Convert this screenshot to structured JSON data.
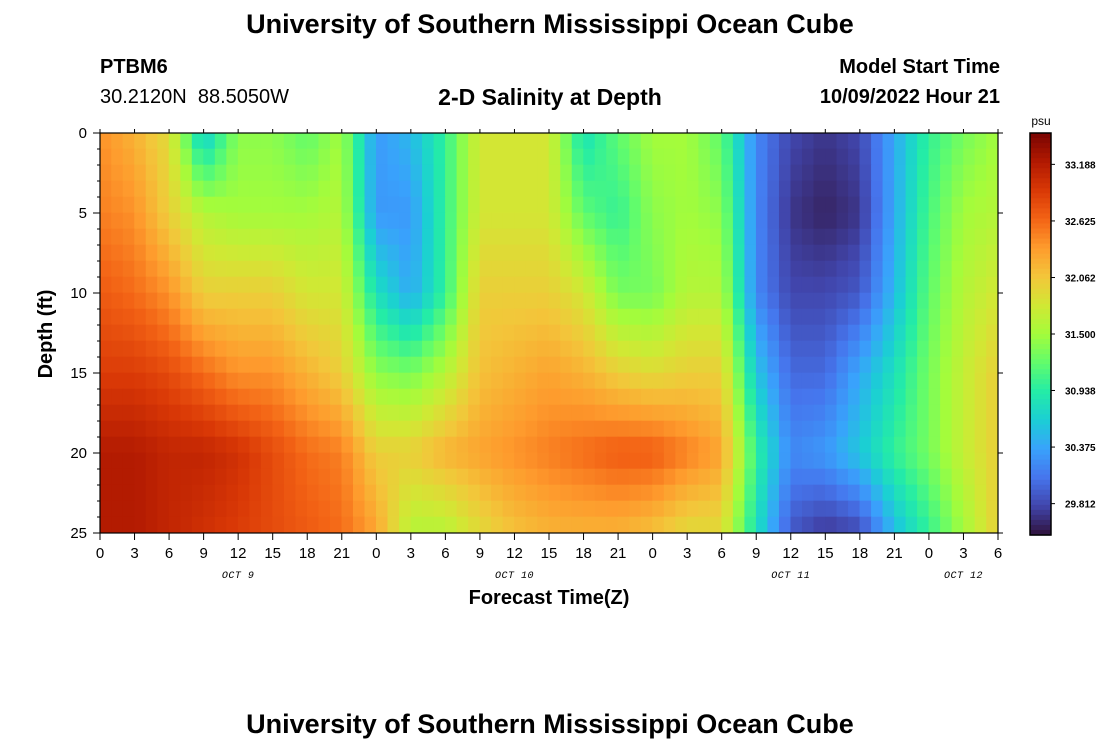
{
  "header": {
    "title": "University of Southern Mississippi Ocean Cube",
    "station_id": "PTBM6",
    "station_location": "30.2120N  88.5050W",
    "plot_title": "2-D Salinity at Depth",
    "model_start_label": "Model Start Time",
    "model_start_value": "10/09/2022 Hour 21"
  },
  "footer": {
    "title": "University of Southern Mississippi Ocean Cube"
  },
  "chart_data": {
    "type": "heatmap",
    "title": "2-D Salinity at Depth",
    "xlabel": "Forecast Time(Z)",
    "ylabel": "Depth (ft)",
    "colorbar_unit": "psu",
    "x_hours": [
      0,
      78
    ],
    "x_ticks": [
      "0",
      "3",
      "6",
      "9",
      "12",
      "15",
      "18",
      "21",
      "0",
      "3",
      "6",
      "9",
      "12",
      "15",
      "18",
      "21",
      "0",
      "3",
      "6",
      "9",
      "12",
      "15",
      "18",
      "21",
      "0",
      "3",
      "6"
    ],
    "day_labels": [
      {
        "label": "OCT 9",
        "hour": 12
      },
      {
        "label": "OCT 10",
        "hour": 36
      },
      {
        "label": "OCT 11",
        "hour": 60
      },
      {
        "label": "OCT 12",
        "hour": 75
      }
    ],
    "ylim": [
      0,
      25
    ],
    "y_ticks": [
      0,
      5,
      10,
      15,
      20,
      25
    ],
    "colorbar_ticks": [
      33.188,
      32.625,
      32.062,
      31.5,
      30.938,
      30.375,
      29.812
    ],
    "colorbar_range": [
      29.5,
      33.5
    ],
    "colors": [
      "#30123b",
      "#4145ab",
      "#4675ed",
      "#39a2fc",
      "#1bcfd4",
      "#24eca6",
      "#61fc6c",
      "#a4fc3b",
      "#d1e834",
      "#f3c63a",
      "#fe9b2d",
      "#f36315",
      "#d93806",
      "#b11901",
      "#7a0402"
    ],
    "depth_levels": [
      0,
      5,
      10,
      15,
      20,
      25
    ],
    "salinity_hours": [
      0,
      3,
      6,
      9,
      12,
      15,
      18,
      21,
      24,
      27,
      30,
      33,
      36,
      39,
      42,
      45,
      48,
      51,
      54,
      57,
      60,
      63,
      66,
      69,
      72,
      75,
      78
    ],
    "salinity": [
      [
        32.4,
        32.2,
        31.9,
        30.6,
        31.4,
        31.4,
        31.2,
        31.5,
        30.3,
        30.5,
        31.0,
        31.8,
        31.8,
        31.8,
        30.8,
        31.2,
        31.5,
        31.5,
        31.2,
        30.2,
        29.8,
        29.7,
        29.8,
        30.4,
        31.0,
        31.3,
        31.5
      ],
      [
        32.5,
        32.4,
        32.0,
        31.6,
        31.5,
        31.5,
        31.5,
        31.6,
        30.3,
        30.3,
        31.0,
        31.8,
        31.8,
        31.8,
        31.2,
        31.0,
        31.4,
        31.5,
        31.4,
        30.2,
        29.7,
        29.6,
        29.7,
        30.4,
        31.1,
        31.5,
        31.6
      ],
      [
        32.7,
        32.6,
        32.4,
        32.0,
        32.0,
        32.0,
        31.8,
        31.8,
        30.8,
        30.4,
        31.0,
        32.0,
        32.0,
        32.0,
        31.8,
        31.3,
        31.3,
        31.6,
        31.6,
        30.2,
        29.8,
        29.8,
        29.9,
        30.5,
        31.2,
        31.6,
        31.8
      ],
      [
        32.9,
        32.9,
        32.8,
        32.6,
        32.4,
        32.4,
        32.2,
        32.0,
        31.4,
        31.3,
        31.6,
        32.1,
        32.2,
        32.3,
        32.2,
        32.0,
        31.9,
        32.0,
        32.0,
        30.6,
        30.0,
        30.0,
        30.4,
        30.8,
        31.3,
        31.7,
        32.0
      ],
      [
        33.2,
        33.2,
        33.1,
        33.1,
        33.0,
        32.8,
        32.6,
        32.5,
        32.0,
        32.0,
        32.2,
        32.3,
        32.4,
        32.5,
        32.6,
        32.7,
        32.7,
        32.5,
        32.3,
        31.0,
        30.2,
        30.3,
        30.6,
        31.0,
        31.3,
        31.7,
        32.0
      ],
      [
        33.2,
        33.2,
        33.1,
        33.0,
        32.9,
        32.8,
        32.7,
        32.6,
        32.3,
        31.6,
        31.6,
        31.9,
        32.1,
        32.2,
        32.2,
        32.2,
        32.1,
        31.9,
        31.9,
        30.8,
        29.9,
        29.7,
        29.8,
        30.5,
        31.0,
        31.5,
        32.0
      ]
    ]
  }
}
